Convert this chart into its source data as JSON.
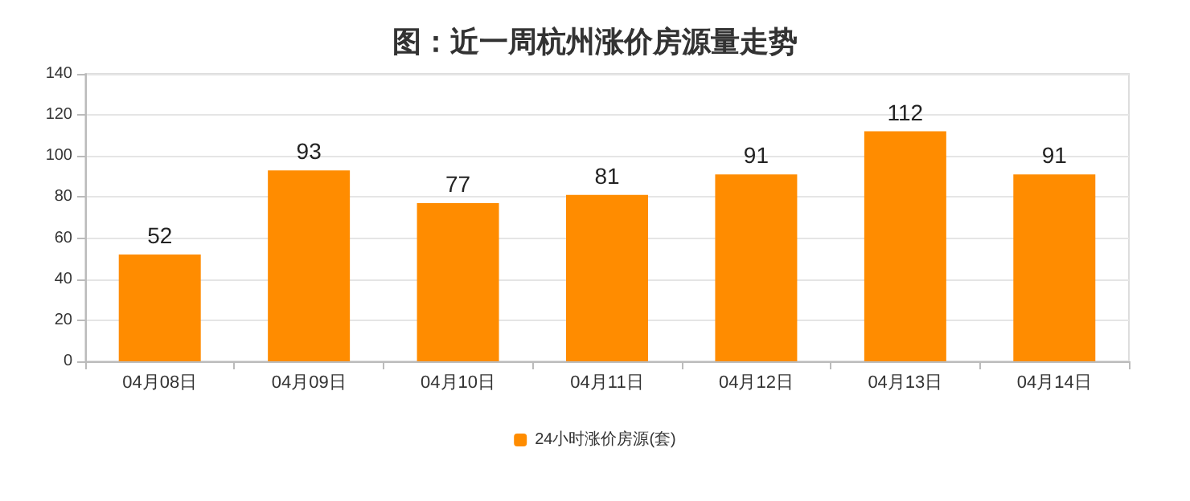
{
  "chart_data": {
    "type": "bar",
    "title": "图：近一周杭州涨价房源量走势",
    "categories": [
      "04月08日",
      "04月09日",
      "04月10日",
      "04月11日",
      "04月12日",
      "04月13日",
      "04月14日"
    ],
    "series": [
      {
        "name": "24小时涨价房源(套)",
        "color": "#ff8c00",
        "values": [
          52,
          93,
          77,
          81,
          91,
          112,
          91
        ]
      }
    ],
    "ylim": [
      0,
      140
    ],
    "yticks": [
      0,
      20,
      40,
      60,
      80,
      100,
      120,
      140
    ],
    "grid": "y",
    "legend": "bottom",
    "data_labels": true
  }
}
